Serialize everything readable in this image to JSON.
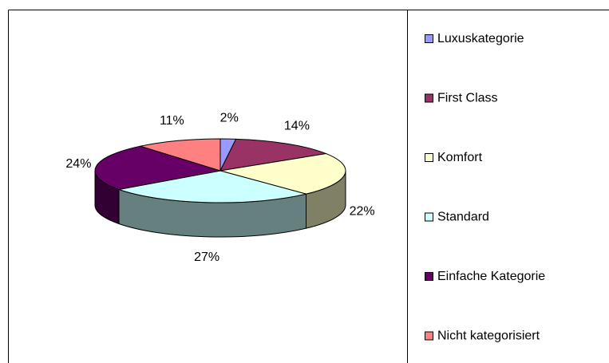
{
  "chart_data": {
    "type": "pie",
    "three_d": true,
    "categories": [
      "Luxuskategorie",
      "First Class",
      "Komfort",
      "Standard",
      "Einfache Kategorie",
      "Nicht kategorisiert"
    ],
    "values": [
      2,
      14,
      22,
      27,
      24,
      11
    ],
    "value_labels": [
      "2%",
      "14%",
      "22%",
      "27%",
      "24%",
      "11%"
    ],
    "colors": [
      "#9999ff",
      "#993366",
      "#ffffcc",
      "#ccffff",
      "#660066",
      "#ff8080"
    ],
    "legend": "right"
  }
}
